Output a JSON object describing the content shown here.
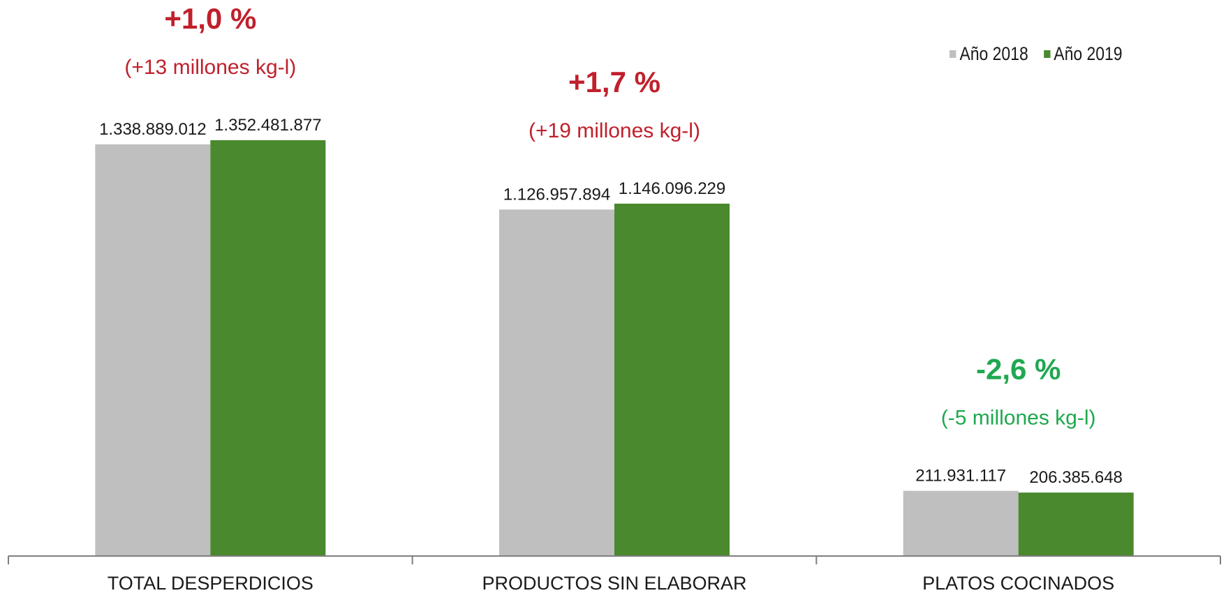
{
  "chart_data": {
    "type": "bar",
    "categories": [
      "TOTAL DESPERDICIOS",
      "PRODUCTOS SIN ELABORAR",
      "PLATOS COCINADOS"
    ],
    "series": [
      {
        "name": "Año 2018",
        "color": "#bfbfbf",
        "values": [
          1338889012,
          1126957894,
          211931117
        ],
        "value_labels": [
          "1.338.889.012",
          "1.126.957.894",
          "211.931.117"
        ]
      },
      {
        "name": "Año 2019",
        "color": "#4a892d",
        "values": [
          1352481877,
          1146096229,
          206385648
        ],
        "value_labels": [
          "1.352.481.877",
          "1.146.096.229",
          "206.385.648"
        ]
      }
    ],
    "annotations": [
      {
        "category": "TOTAL DESPERDICIOS",
        "pct": "+1,0 %",
        "change": "(+13 millones kg-l)",
        "color": "#c0202c"
      },
      {
        "category": "PRODUCTOS SIN ELABORAR",
        "pct": "+1,7 %",
        "change": "(+19 millones kg-l)",
        "color": "#c0202c"
      },
      {
        "category": "PLATOS COCINADOS",
        "pct": "-2,6 %",
        "change": "(-5 millones kg-l)",
        "color": "#1fa84f"
      }
    ],
    "ylim": [
      0,
      1400000000
    ],
    "legend_position": "top-right",
    "grid": false,
    "title": "",
    "xlabel": "",
    "ylabel": ""
  }
}
